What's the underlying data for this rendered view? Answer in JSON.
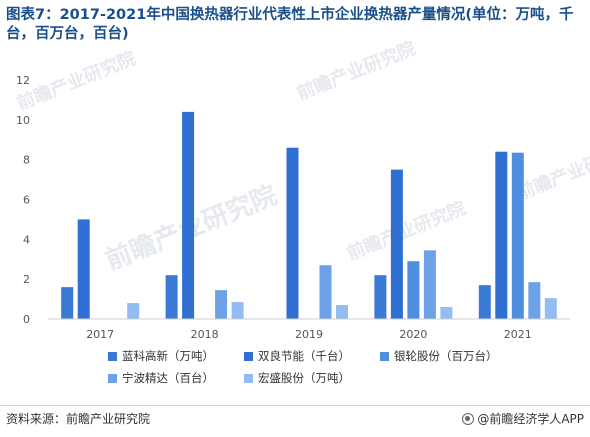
{
  "title": "图表7：2017-2021年中国换热器行业代表性上市企业换热器产量情况(单位：万吨，千台，百万台，百台)",
  "source": "资料来源：前瞻产业研究院",
  "brand": "@前瞻经济学人APP",
  "watermark": "前瞻产业研究院",
  "chart_data": {
    "type": "bar",
    "categories": [
      "2017",
      "2018",
      "2019",
      "2020",
      "2021"
    ],
    "ylim": [
      0,
      12
    ],
    "yticks": [
      "0",
      "2",
      "4",
      "6",
      "8",
      "10",
      "12"
    ],
    "grid": false,
    "legend_position": "bottom",
    "series": [
      {
        "name": "蓝科高新（万吨）",
        "color": "#3a7ad5",
        "values": [
          1.6,
          2.2,
          null,
          2.2,
          1.7
        ]
      },
      {
        "name": "双良节能（千台）",
        "color": "#2f6fd1",
        "values": [
          5.0,
          10.4,
          8.6,
          7.5,
          8.4
        ]
      },
      {
        "name": "银轮股份（百万台）",
        "color": "#4f8de0",
        "values": [
          null,
          null,
          null,
          2.9,
          8.35
        ]
      },
      {
        "name": "宁波精达（百台）",
        "color": "#6ea2e8",
        "values": [
          null,
          1.45,
          2.7,
          3.45,
          1.85
        ]
      },
      {
        "name": "宏盛股份（万吨）",
        "color": "#93bcf2",
        "values": [
          0.8,
          0.85,
          0.7,
          0.6,
          1.05
        ]
      }
    ]
  }
}
